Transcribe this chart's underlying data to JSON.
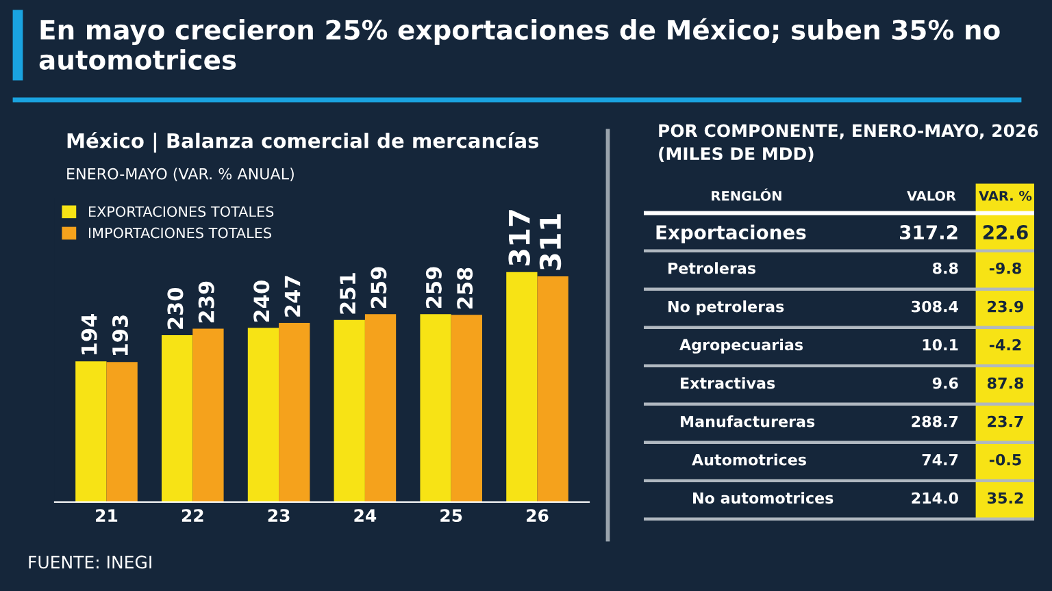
{
  "chart_data": [
    {
      "type": "bar",
      "title": "En mayo crecieron 25% exportaciones de México; suben 35% no automotrices",
      "subtitle": "México | Balanza comercial de mercancías",
      "categories": [
        "21",
        "22",
        "23",
        "24",
        "25",
        "26"
      ],
      "series": [
        {
          "name": "EXPORTACIONES TOTALES",
          "color": "#f7e315",
          "values": [
            194,
            230,
            240,
            251,
            259,
            317
          ]
        },
        {
          "name": "IMPORTACIONES TOTALES",
          "color": "#f5a21c",
          "values": [
            193,
            239,
            247,
            259,
            258,
            311
          ]
        }
      ],
      "data_labels": true,
      "legend": "top left",
      "grid": false,
      "annotations": [
        "ENERO-MAYO (VAR. % ANUAL)",
        "FUENTE: INEGI"
      ]
    },
    {
      "type": "other",
      "title": "POR COMPONENTE, ENERO-MAYO, 2026\n(MILES DE MDD)",
      "categories": [
        "Exportaciones",
        "Petroleras",
        "No petroleras",
        "Agropecuarias",
        "Extractivas",
        "Manufactureras",
        "Automotrices",
        "No automotrices"
      ],
      "series": [
        {
          "name": "VALOR",
          "color": "#ffffff",
          "values": [
            317.2,
            8.8,
            308.4,
            10.1,
            9.6,
            288.7,
            74.7,
            214.0
          ],
          "value_labels": [
            "317.2",
            "8.8",
            "308.4",
            "10.1",
            "9.6",
            "288.7",
            "74.7",
            "214.0"
          ]
        },
        {
          "name": "VAR. %",
          "color": "#f7e315",
          "values": [
            22.6,
            -9.8,
            23.9,
            -4.2,
            87.8,
            23.7,
            -0.5,
            35.2
          ],
          "value_labels": [
            "22.6",
            "-9.8",
            "23.9",
            "-4.2",
            "87.8",
            "23.7",
            "-0.5",
            "35.2"
          ]
        }
      ],
      "annotations": [
        "RENGLÓN"
      ]
    }
  ]
}
